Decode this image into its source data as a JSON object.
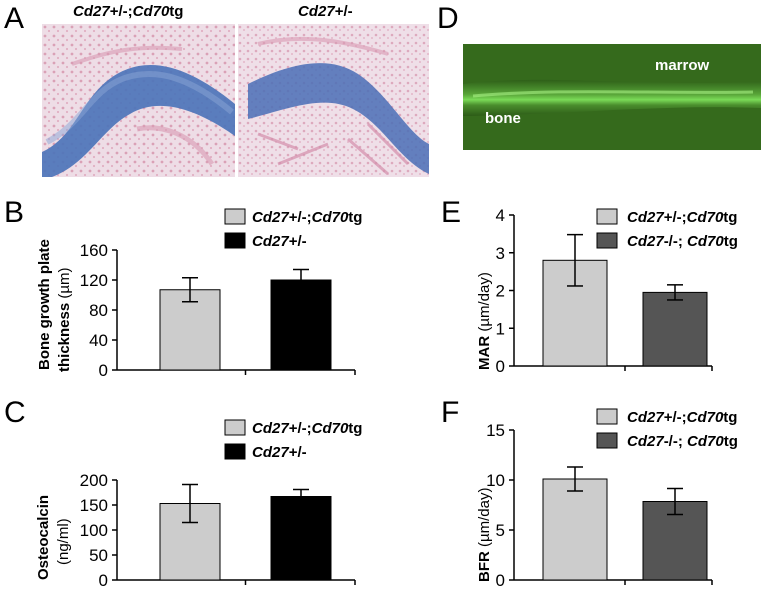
{
  "panels": {
    "A": "A",
    "B": "B",
    "C": "C",
    "D": "D",
    "E": "E",
    "F": "F"
  },
  "histology": {
    "left_title_gene1": "Cd27",
    "left_title_rest1": "+/-;",
    "left_title_gene2": "Cd70",
    "left_title_rest2": "tg",
    "right_title_gene": "Cd27",
    "right_title_rest": "+/-"
  },
  "fluorescence": {
    "label_marrow": "marrow",
    "label_bone": "bone"
  },
  "legend_left": {
    "item1_g1": "Cd27",
    "item1_s1": "+/-;",
    "item1_g2": "Cd70",
    "item1_s2": "tg",
    "item2_g1": "Cd27",
    "item2_s1": "+/-"
  },
  "legend_right": {
    "item1_g1": "Cd27",
    "item1_s1": "+/-;",
    "item1_g2": "Cd70",
    "item1_s2": "tg",
    "item2_g1": "Cd27",
    "item2_s1": "-/-; ",
    "item2_g2": "Cd70",
    "item2_s2": "tg"
  },
  "axes": {
    "B_ylabel_line1": "Bone growth plate",
    "B_ylabel_line2_bold": "thickness",
    "B_ylabel_line2_unit": " (µm)",
    "C_ylabel_line1": "Osteocalcin",
    "C_ylabel_line2": "(ng/ml)",
    "E_ylabel_bold": "MAR",
    "E_ylabel_unit": " (µm/day)",
    "F_ylabel_bold": "BFR",
    "F_ylabel_unit": " (µm/day)"
  },
  "colors": {
    "group1": "#cccccc",
    "group2_left": "#000000",
    "group2_right": "#555555",
    "fluor_bg": "#356a1c",
    "fluor_glow": "#7ee05a"
  },
  "chart_data": [
    {
      "panel": "B",
      "type": "bar",
      "categories": [
        "Cd27+/-;Cd70tg",
        "Cd27+/-"
      ],
      "values": [
        107,
        120
      ],
      "errors": [
        16,
        14
      ],
      "ylim": [
        0,
        160
      ],
      "yticks": [
        "0",
        "40",
        "80",
        "120",
        "160"
      ],
      "ylabel": "Bone growth plate thickness (µm)"
    },
    {
      "panel": "C",
      "type": "bar",
      "categories": [
        "Cd27+/-;Cd70tg",
        "Cd27+/-"
      ],
      "values": [
        153,
        167
      ],
      "errors": [
        38,
        14
      ],
      "ylim": [
        0,
        200
      ],
      "yticks": [
        "0",
        "50",
        "100",
        "150",
        "200"
      ],
      "ylabel": "Osteocalcin (ng/ml)"
    },
    {
      "panel": "E",
      "type": "bar",
      "categories": [
        "Cd27+/-;Cd70tg",
        "Cd27-/-; Cd70tg"
      ],
      "values": [
        2.8,
        1.95
      ],
      "errors": [
        0.68,
        0.2
      ],
      "ylim": [
        0,
        4
      ],
      "yticks": [
        "0",
        "1",
        "2",
        "3",
        "4"
      ],
      "ylabel": "MAR (µm/day)"
    },
    {
      "panel": "F",
      "type": "bar",
      "categories": [
        "Cd27+/-;Cd70tg",
        "Cd27-/-; Cd70tg"
      ],
      "values": [
        10.1,
        7.85
      ],
      "errors": [
        1.2,
        1.3
      ],
      "ylim": [
        0,
        15
      ],
      "yticks": [
        "0",
        "5",
        "10",
        "15"
      ],
      "ylabel": "BFR (µm/day)"
    }
  ]
}
